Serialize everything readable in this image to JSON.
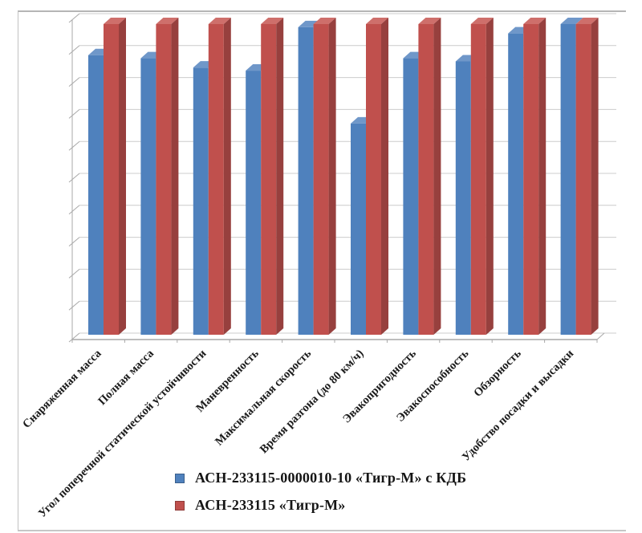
{
  "figure_title": "",
  "chart_data": {
    "type": "bar",
    "subtype": "3d-clustered-column",
    "title": "",
    "xlabel": "",
    "ylabel": "",
    "axis_value_labels_visible": false,
    "ylim": [
      0,
      1.0
    ],
    "grid": true,
    "y_grid_intervals": 10,
    "legend_position": "bottom-center",
    "categories": [
      "Снаряженная масса",
      "Полная масса",
      "Угол поперечной статической устойчивости",
      "Маневренность",
      "Максимальная скорость",
      "Время разгона (до 80 км/ч)",
      "Эвакопригодность",
      "Эвакоспособность",
      "Обзорность",
      "Удобство посадки и высадки"
    ],
    "series": [
      {
        "name": "АСН-233115-0000010-10 «Тигр-М» с КДБ",
        "color": "#4F81BD",
        "color_top": "#6F97C9",
        "color_side": "#36608F",
        "values": [
          0.9,
          0.89,
          0.86,
          0.85,
          0.99,
          0.68,
          0.89,
          0.88,
          0.97,
          1.0
        ]
      },
      {
        "name": "АСН-233115 «Тигр-М»",
        "color": "#C0504D",
        "color_top": "#CE6F6B",
        "color_side": "#97403E",
        "values": [
          1.0,
          1.0,
          1.0,
          1.0,
          1.0,
          1.0,
          1.0,
          1.0,
          1.0,
          1.0
        ]
      }
    ]
  },
  "legend": {
    "items": [
      {
        "label": "АСН-233115-0000010-10 «Тигр-М» с КДБ",
        "color": "#4F81BD"
      },
      {
        "label": "АСН-233115 «Тигр-М»",
        "color": "#C0504D"
      }
    ]
  },
  "colors": {
    "background": "#ffffff",
    "gridline": "#cccccc",
    "axis": "#a8a8a8",
    "frame": "#c2c2c2",
    "label_text": "#1a1a1a"
  }
}
